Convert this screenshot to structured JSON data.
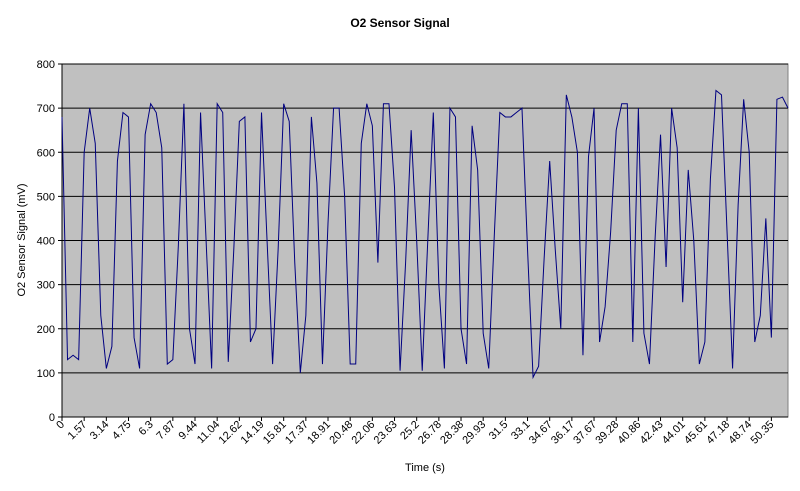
{
  "chart_data": {
    "type": "line",
    "title": "O2 Sensor Signal",
    "x_label": "Time (s)",
    "y_label": "O2 Sensor Signal (mV)",
    "color": "#000080",
    "grid": true,
    "ylim": [
      0,
      800
    ],
    "yticks": [
      0,
      100,
      200,
      300,
      400,
      500,
      600,
      700,
      800
    ],
    "categories": [
      "0",
      null,
      null,
      null,
      "1.57",
      null,
      null,
      null,
      "3.14",
      null,
      null,
      null,
      "4.75",
      null,
      null,
      null,
      "6.3",
      null,
      null,
      null,
      "7.87",
      null,
      null,
      null,
      "9.44",
      null,
      null,
      null,
      "11.04",
      null,
      null,
      null,
      "12.62",
      null,
      null,
      null,
      "14.19",
      null,
      null,
      null,
      "15.81",
      null,
      null,
      null,
      "17.37",
      null,
      null,
      null,
      "18.91",
      null,
      null,
      null,
      "20.48",
      null,
      null,
      null,
      "22.06",
      null,
      null,
      null,
      "23.63",
      null,
      null,
      null,
      "25.2",
      null,
      null,
      null,
      "26.78",
      null,
      null,
      null,
      "28.38",
      null,
      null,
      null,
      "29.93",
      null,
      null,
      null,
      "31.5",
      null,
      null,
      null,
      "33.1",
      null,
      null,
      null,
      "34.67",
      null,
      null,
      null,
      "36.17",
      null,
      null,
      null,
      "37.67",
      null,
      null,
      null,
      "39.28",
      null,
      null,
      null,
      "40.86",
      null,
      null,
      null,
      "42.43",
      null,
      null,
      null,
      "44.01",
      null,
      null,
      null,
      "45.61",
      null,
      null,
      null,
      "47.18",
      null,
      null,
      null,
      "48.74",
      null,
      null,
      null,
      "50.35",
      null,
      null,
      null
    ],
    "values": [
      680,
      130,
      140,
      130,
      600,
      700,
      620,
      230,
      110,
      160,
      580,
      690,
      680,
      180,
      110,
      640,
      710,
      690,
      610,
      120,
      130,
      390,
      710,
      200,
      120,
      690,
      400,
      110,
      710,
      690,
      125,
      380,
      670,
      680,
      170,
      200,
      690,
      400,
      120,
      380,
      710,
      670,
      350,
      100,
      230,
      680,
      530,
      120,
      440,
      700,
      700,
      500,
      120,
      120,
      620,
      710,
      660,
      350,
      710,
      710,
      520,
      105,
      350,
      650,
      400,
      105,
      400,
      690,
      300,
      110,
      700,
      680,
      200,
      120,
      660,
      560,
      190,
      110,
      410,
      690,
      680,
      680,
      690,
      700,
      380,
      90,
      115,
      360,
      580,
      380,
      200,
      730,
      680,
      600,
      140,
      590,
      700,
      170,
      250,
      420,
      650,
      710,
      710,
      170,
      700,
      190,
      120,
      400,
      640,
      340,
      700,
      610,
      260,
      560,
      400,
      120,
      170,
      540,
      740,
      730,
      420,
      110,
      480,
      720,
      600,
      170,
      230,
      450,
      180,
      720,
      725,
      700
    ]
  }
}
